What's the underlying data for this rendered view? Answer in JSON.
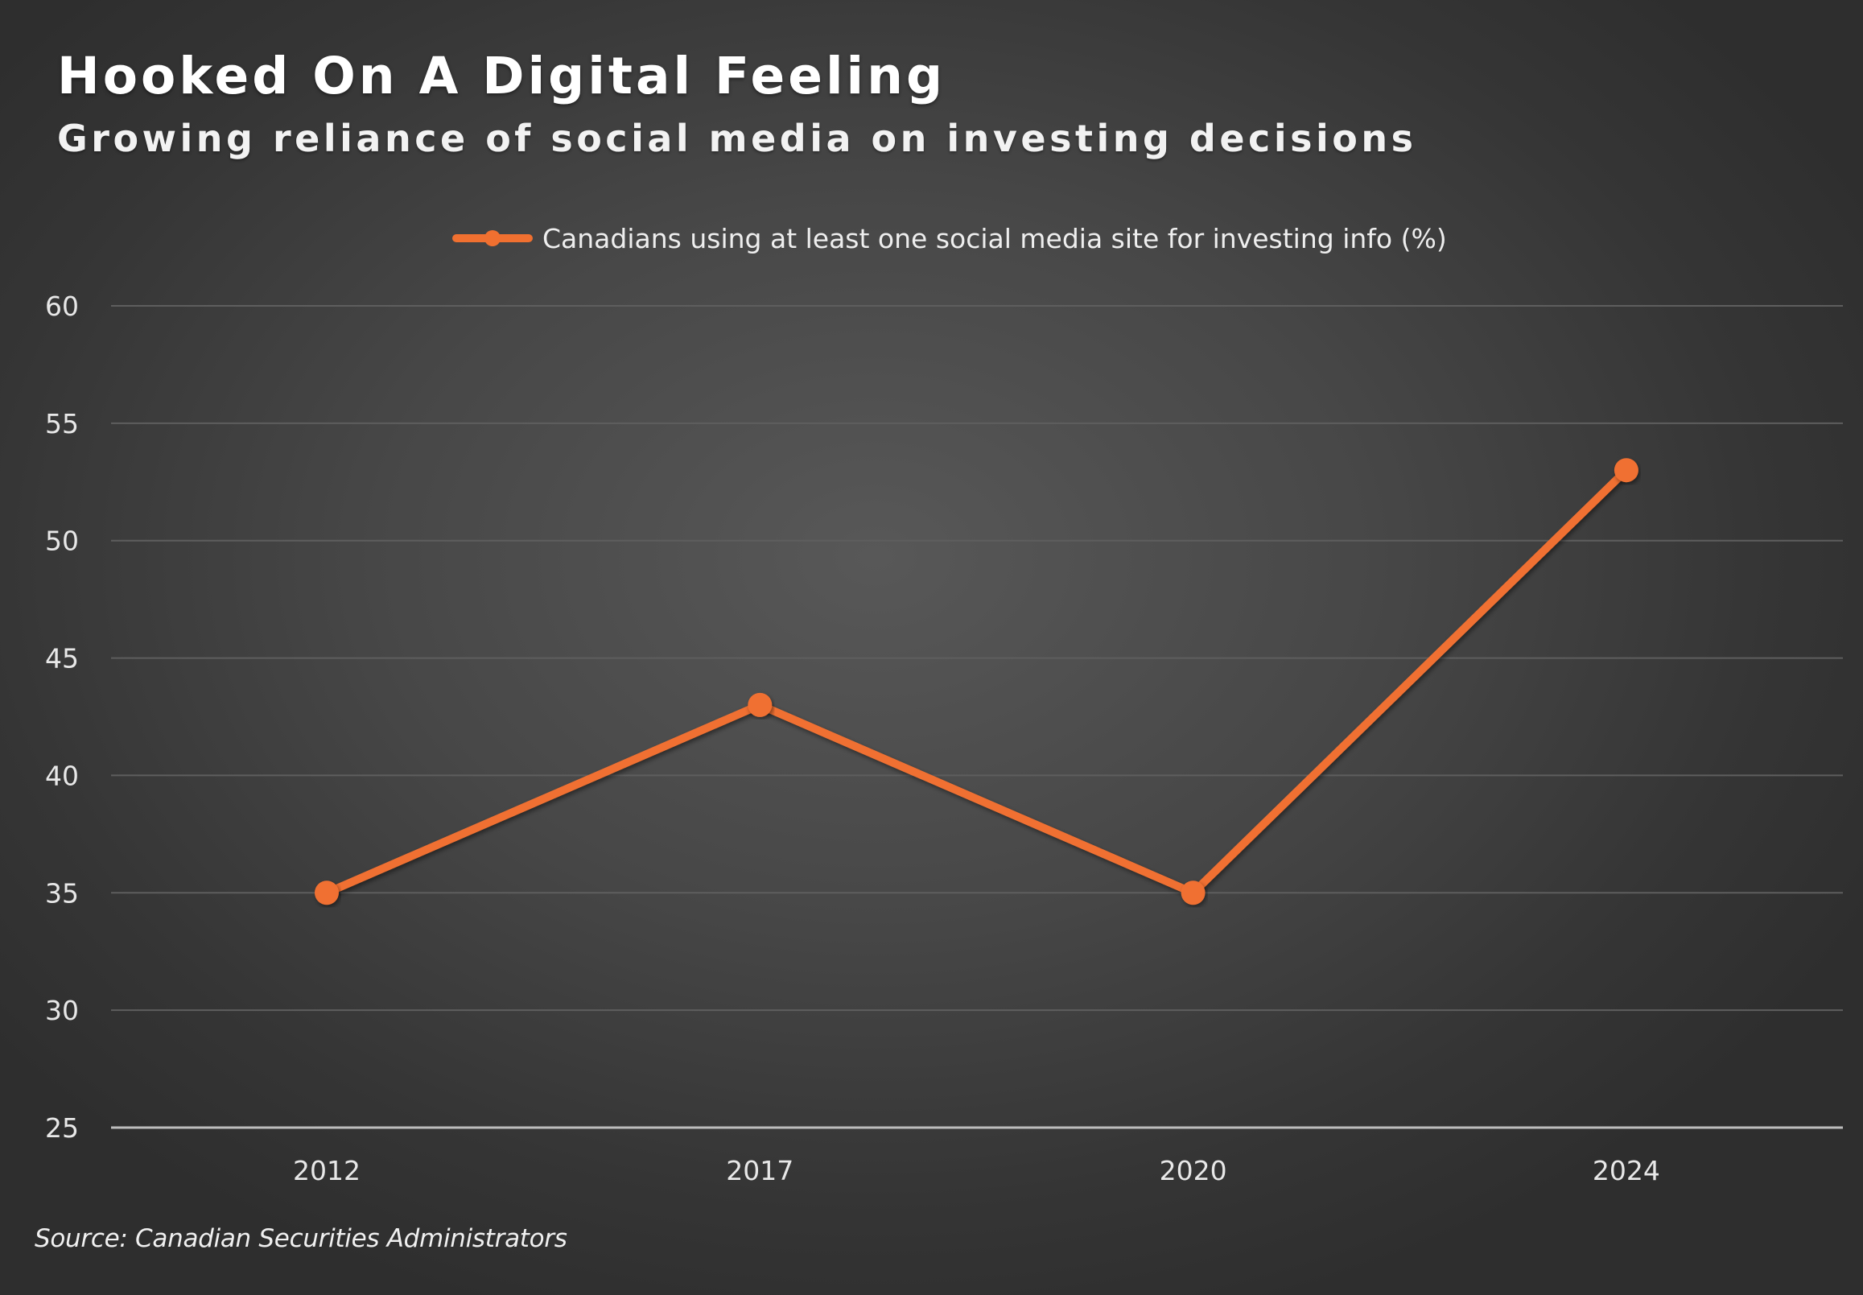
{
  "title": "Hooked On A Digital Feeling",
  "subtitle": "Growing reliance of social media on investing decisions",
  "source": "Source: Canadian Securities Administrators",
  "colors": {
    "line": "#f07030",
    "grid": "#5e5e5e",
    "axis": "#bdbdbd"
  },
  "chart_data": {
    "type": "line",
    "categories": [
      "2012",
      "2017",
      "2020",
      "2024"
    ],
    "series": [
      {
        "name": "Canadians using at least one social media site for investing info (%)",
        "values": [
          35,
          43,
          35,
          53
        ]
      }
    ],
    "y_ticks": [
      "25",
      "30",
      "35",
      "40",
      "45",
      "50",
      "55",
      "60"
    ],
    "ylim": [
      25,
      60
    ],
    "grid": true,
    "legend_position": "top-center",
    "marker": "circle"
  }
}
